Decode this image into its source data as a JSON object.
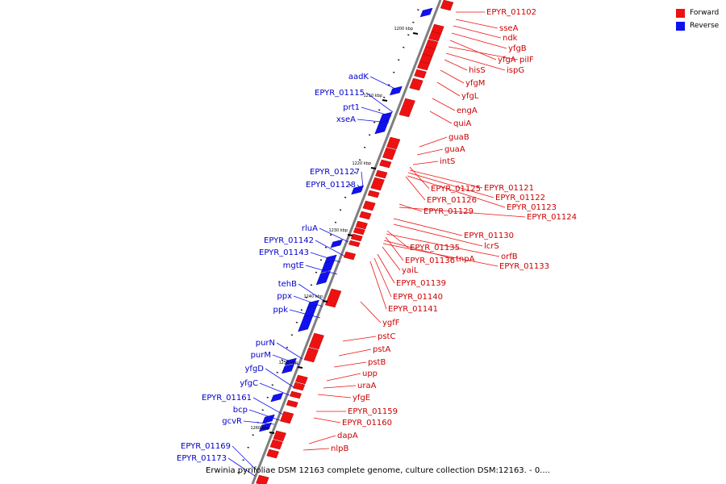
{
  "colors": {
    "forward": "#ee1111",
    "reverse": "#1111ee",
    "backbone": "#7f7f7f",
    "tick": "#000000"
  },
  "legend": [
    {
      "label": "Forward",
      "color": "#ee1111"
    },
    {
      "label": "Reverse",
      "color": "#1111ee"
    }
  ],
  "caption": "Erwinia pyrifoliae DSM 12163 complete genome, culture collection DSM:12163. - 0....",
  "scale_labels": [
    "1200 kbp",
    "1210 kbp",
    "1220 kbp",
    "1230 kbp",
    "1240 kbp",
    "1250 kbp",
    "1260 kbp"
  ],
  "forward_labels": [
    "EPYR_01102",
    "sseA",
    "ndk",
    "yfgB",
    "yfgA",
    "pilF",
    "ispG",
    "hisS",
    "yfgM",
    "yfgL",
    "engA",
    "quiA",
    "guaB",
    "guaA",
    "intS",
    "EPYR_01125",
    "EPYR_01121",
    "EPYR_01122",
    "EPYR_01126",
    "EPYR_01123",
    "EPYR_01129",
    "EPYR_01124",
    "EPYR_01130",
    "lcrS",
    "EPYR_01135",
    "orfB",
    "EPYR_01136",
    "tnpA",
    "EPYR_01133",
    "yaiL",
    "EPYR_01139",
    "EPYR_01140",
    "EPYR_01141",
    "ygfF",
    "pstC",
    "pstA",
    "pstB",
    "upp",
    "uraA",
    "yfgE",
    "EPYR_01159",
    "EPYR_01160",
    "dapA",
    "nlpB"
  ],
  "reverse_labels": [
    "aadK",
    "EPYR_01115",
    "prt1",
    "xseA",
    "EPYR_01127",
    "EPYR_01128",
    "rluA",
    "EPYR_01142",
    "EPYR_01143",
    "mgtE",
    "tehB",
    "ppx",
    "ppk",
    "purN",
    "purM",
    "yfgD",
    "yfgC",
    "EPYR_01161",
    "bcp",
    "gcvR",
    "EPYR_01169",
    "EPYR_01173"
  ]
}
